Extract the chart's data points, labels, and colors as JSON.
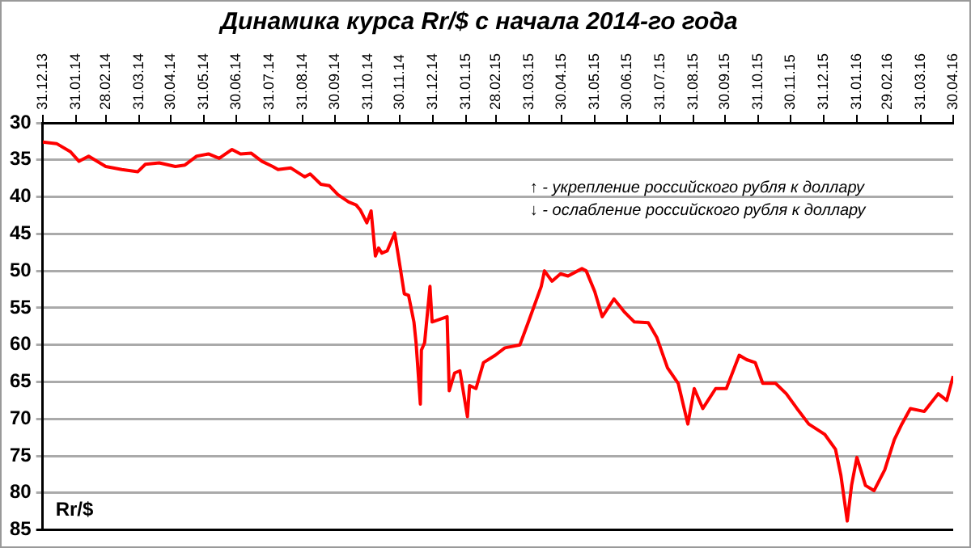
{
  "chart_data": {
    "type": "line",
    "title": "Динамика курса Rr/$ с начала 2014-го года",
    "ylabel": "Rr/$",
    "annotations": [
      "↑ - укрепление российского рубля к доллару",
      "↓ - ослабление российского рубля к доллару"
    ],
    "xlim": [
      "2013-12-31",
      "2016-04-30"
    ],
    "xticks": [
      {
        "value": "2013-12-31",
        "label": "31.12.13"
      },
      {
        "value": "2014-01-31",
        "label": "31.01.14"
      },
      {
        "value": "2014-02-28",
        "label": "28.02.14"
      },
      {
        "value": "2014-03-31",
        "label": "31.03.14"
      },
      {
        "value": "2014-04-30",
        "label": "30.04.14"
      },
      {
        "value": "2014-05-31",
        "label": "31.05.14"
      },
      {
        "value": "2014-06-30",
        "label": "30.06.14"
      },
      {
        "value": "2014-07-31",
        "label": "31.07.14"
      },
      {
        "value": "2014-08-31",
        "label": "31.08.14"
      },
      {
        "value": "2014-09-30",
        "label": "30.09.14"
      },
      {
        "value": "2014-10-31",
        "label": "31.10.14"
      },
      {
        "value": "2014-11-30",
        "label": "30.11.14"
      },
      {
        "value": "2014-12-31",
        "label": "31.12.14"
      },
      {
        "value": "2015-01-31",
        "label": "31.01.15"
      },
      {
        "value": "2015-02-28",
        "label": "28.02.15"
      },
      {
        "value": "2015-03-31",
        "label": "31.03.15"
      },
      {
        "value": "2015-04-30",
        "label": "30.04.15"
      },
      {
        "value": "2015-05-31",
        "label": "31.05.15"
      },
      {
        "value": "2015-06-30",
        "label": "30.06.15"
      },
      {
        "value": "2015-07-31",
        "label": "31.07.15"
      },
      {
        "value": "2015-08-31",
        "label": "31.08.15"
      },
      {
        "value": "2015-09-30",
        "label": "30.09.15"
      },
      {
        "value": "2015-10-31",
        "label": "31.10.15"
      },
      {
        "value": "2015-11-30",
        "label": "30.11.15"
      },
      {
        "value": "2015-12-31",
        "label": "31.12.15"
      },
      {
        "value": "2016-01-31",
        "label": "31.01.16"
      },
      {
        "value": "2016-02-29",
        "label": "29.02.16"
      },
      {
        "value": "2016-03-31",
        "label": "31.03.16"
      },
      {
        "value": "2016-04-30",
        "label": "30.04.16"
      }
    ],
    "ylim": [
      85,
      30
    ],
    "yticks": [
      30,
      35,
      40,
      45,
      50,
      55,
      60,
      65,
      70,
      75,
      80,
      85
    ],
    "grid": "y",
    "legend": false,
    "marker": "none",
    "line_style": "solid",
    "series": [
      {
        "color": "#ff0000",
        "x": [
          "2013-12-31",
          "2014-01-13",
          "2014-01-26",
          "2014-02-03",
          "2014-02-12",
          "2014-02-28",
          "2014-03-15",
          "2014-03-30",
          "2014-04-06",
          "2014-04-19",
          "2014-05-04",
          "2014-05-13",
          "2014-05-24",
          "2014-06-04",
          "2014-06-14",
          "2014-06-26",
          "2014-07-04",
          "2014-07-14",
          "2014-07-24",
          "2014-08-03",
          "2014-08-08",
          "2014-08-20",
          "2014-09-02",
          "2014-09-07",
          "2014-09-17",
          "2014-09-25",
          "2014-10-03",
          "2014-10-13",
          "2014-10-20",
          "2014-10-24",
          "2014-10-30",
          "2014-11-03",
          "2014-11-07",
          "2014-11-10",
          "2014-11-13",
          "2014-11-18",
          "2014-11-25",
          "2014-11-30",
          "2014-12-04",
          "2014-12-08",
          "2014-12-13",
          "2014-12-15",
          "2014-12-19",
          "2014-12-20",
          "2014-12-23",
          "2014-12-28",
          "2014-12-30",
          "2015-01-13",
          "2015-01-15",
          "2015-01-20",
          "2015-01-25",
          "2015-02-01",
          "2015-02-03",
          "2015-02-09",
          "2015-02-16",
          "2015-02-27",
          "2015-03-08",
          "2015-03-22",
          "2015-03-30",
          "2015-04-11",
          "2015-04-14",
          "2015-04-21",
          "2015-04-29",
          "2015-05-06",
          "2015-05-19",
          "2015-05-23",
          "2015-05-31",
          "2015-06-07",
          "2015-06-18",
          "2015-06-28",
          "2015-07-07",
          "2015-07-20",
          "2015-07-28",
          "2015-08-07",
          "2015-08-17",
          "2015-08-26",
          "2015-09-01",
          "2015-09-09",
          "2015-09-21",
          "2015-10-01",
          "2015-10-13",
          "2015-10-20",
          "2015-10-28",
          "2015-11-04",
          "2015-11-16",
          "2015-11-26",
          "2015-12-06",
          "2015-12-17",
          "2016-01-01",
          "2016-01-11",
          "2016-01-16",
          "2016-01-22",
          "2016-01-26",
          "2016-01-31",
          "2016-02-08",
          "2016-02-16",
          "2016-02-26",
          "2016-03-06",
          "2016-03-13",
          "2016-03-21",
          "2016-04-03",
          "2016-04-16",
          "2016-04-24",
          "2016-04-30"
        ],
        "values": [
          32.6,
          32.8,
          33.9,
          35.2,
          34.5,
          35.9,
          36.3,
          36.6,
          35.6,
          35.4,
          35.9,
          35.7,
          34.5,
          34.2,
          34.8,
          33.6,
          34.2,
          34.1,
          35.2,
          35.9,
          36.3,
          36.1,
          37.3,
          36.9,
          38.3,
          38.5,
          39.7,
          40.7,
          41.1,
          41.8,
          43.5,
          41.9,
          48.0,
          46.9,
          47.6,
          47.3,
          44.9,
          49.4,
          53.1,
          53.3,
          56.9,
          59.7,
          68.0,
          60.7,
          59.7,
          52.1,
          56.9,
          56.2,
          66.2,
          63.8,
          63.5,
          69.7,
          65.5,
          65.9,
          62.4,
          61.4,
          60.4,
          60.0,
          56.9,
          52.1,
          50.0,
          51.4,
          50.4,
          50.7,
          49.7,
          50.0,
          52.8,
          56.2,
          53.8,
          55.6,
          56.9,
          57.0,
          59.0,
          63.1,
          65.2,
          70.7,
          65.9,
          68.6,
          65.9,
          65.9,
          61.4,
          62.0,
          62.4,
          65.2,
          65.2,
          66.6,
          68.6,
          70.7,
          72.1,
          74.1,
          77.6,
          83.8,
          79.0,
          75.2,
          79.0,
          79.7,
          76.9,
          72.8,
          70.7,
          68.6,
          69.0,
          66.6,
          67.5,
          64.2
        ]
      }
    ]
  }
}
